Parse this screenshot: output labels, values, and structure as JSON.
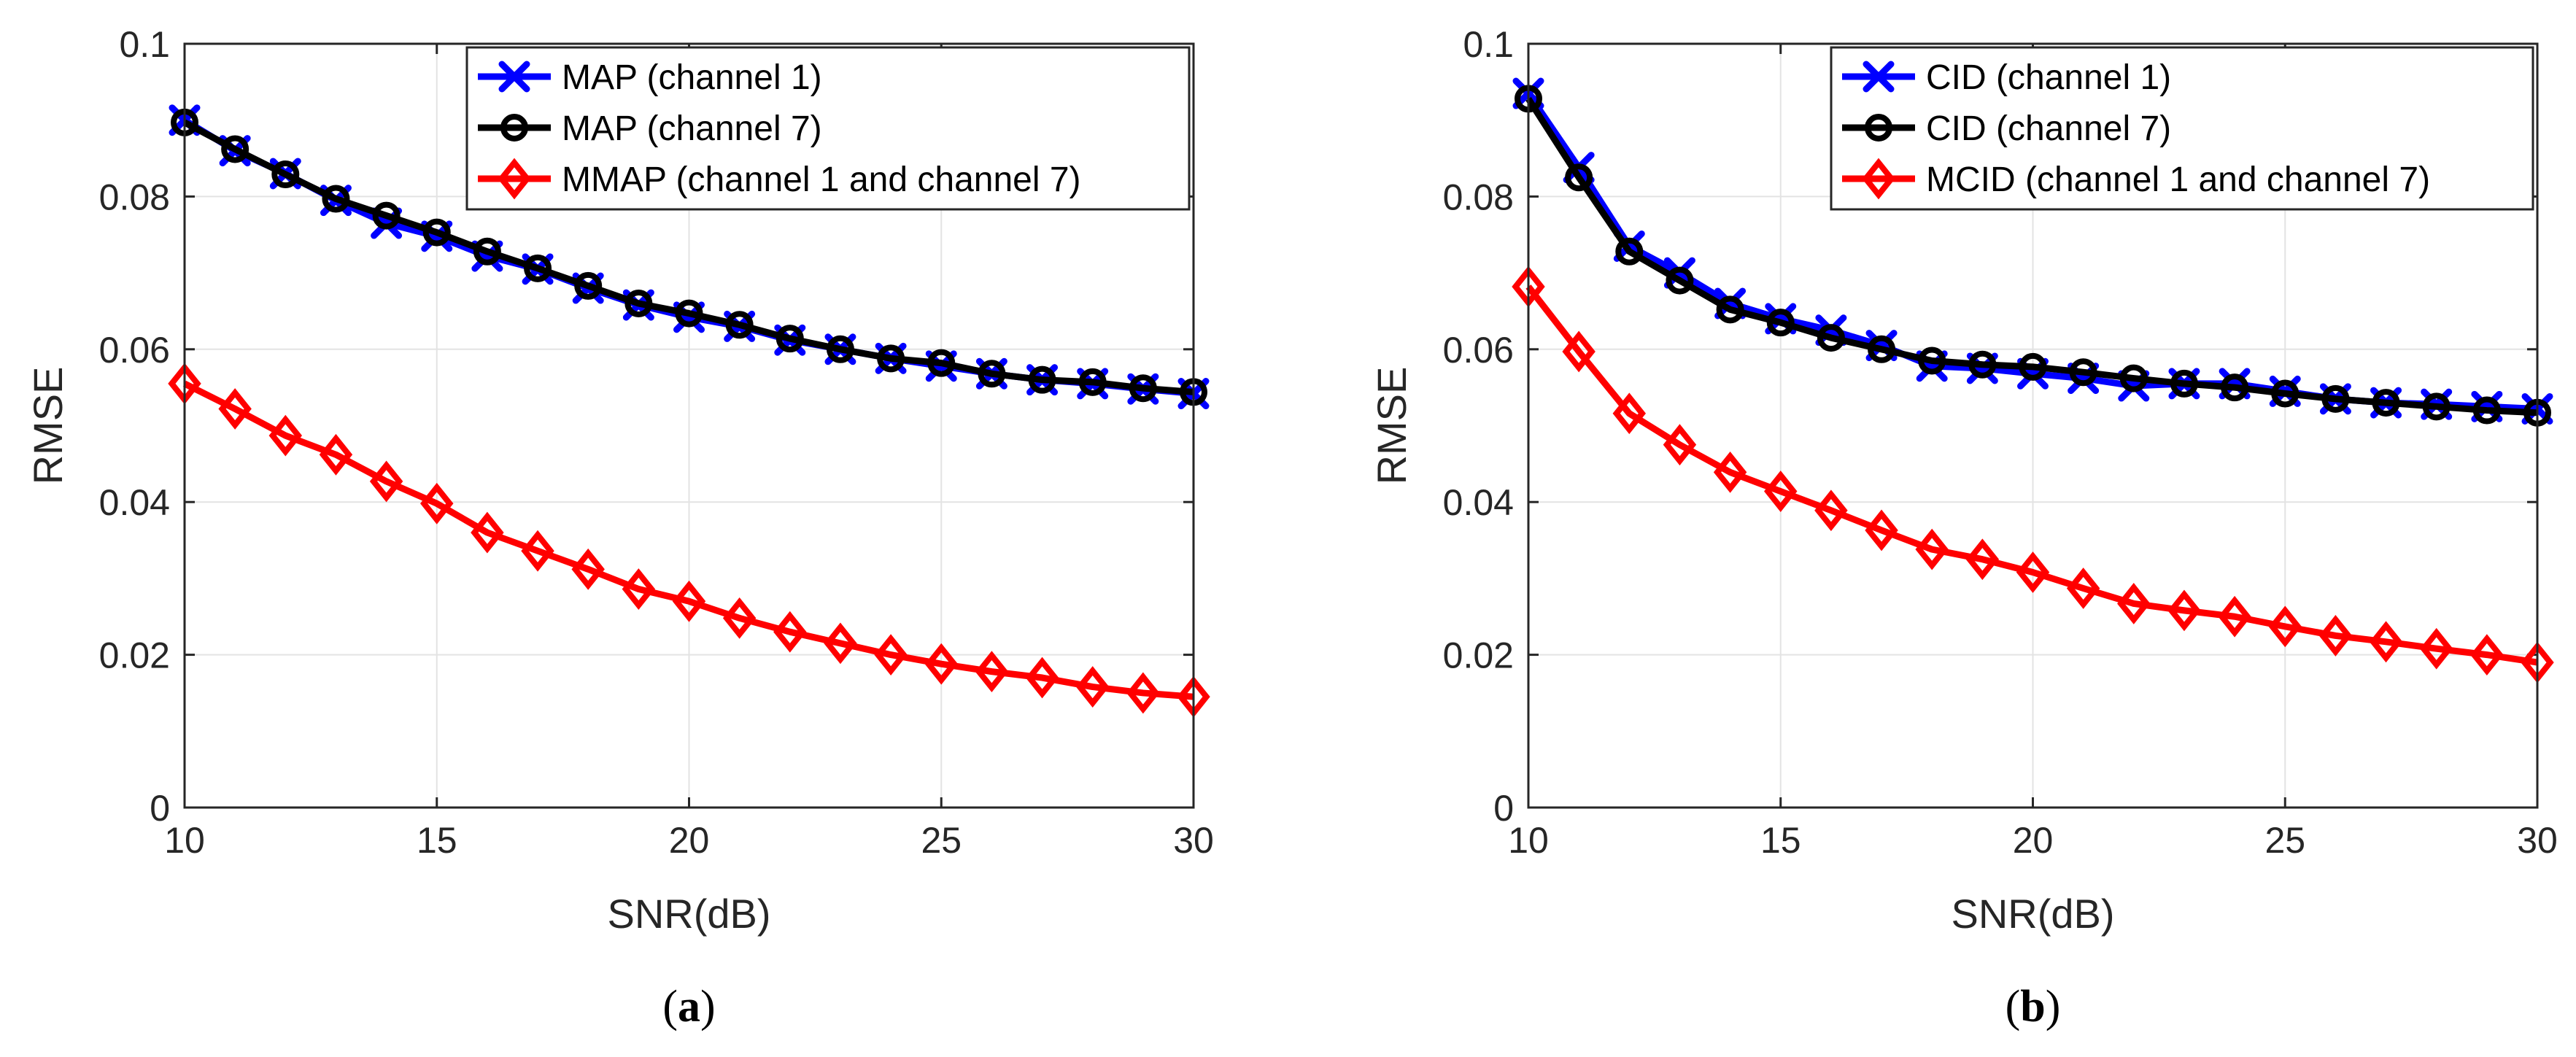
{
  "charts": [
    {
      "caption_letter": "a",
      "chart_data": {
        "type": "line",
        "xlabel": "SNR(dB)",
        "ylabel": "RMSE",
        "xlim": [
          10,
          30
        ],
        "ylim": [
          0,
          0.1
        ],
        "xticks": [
          10,
          15,
          20,
          25,
          30
        ],
        "xtick_labels": [
          "10",
          "15",
          "20",
          "25",
          "30"
        ],
        "yticks": [
          0,
          0.02,
          0.04,
          0.06,
          0.08,
          0.1
        ],
        "ytick_labels": [
          "0",
          "0.02",
          "0.04",
          "0.06",
          "0.08",
          "0.1"
        ],
        "grid": true,
        "legend_position": "top-right",
        "x": [
          10,
          11,
          12,
          13,
          14,
          15,
          16,
          17,
          18,
          19,
          20,
          21,
          22,
          23,
          24,
          25,
          26,
          27,
          28,
          29,
          30
        ],
        "series": [
          {
            "name": "MAP (channel 1)",
            "color": "#0000ff",
            "marker": "x",
            "values": [
              0.09,
              0.086,
              0.083,
              0.0795,
              0.0765,
              0.0748,
              0.0722,
              0.0705,
              0.068,
              0.0658,
              0.0642,
              0.063,
              0.0612,
              0.06,
              0.0588,
              0.0578,
              0.0568,
              0.056,
              0.0555,
              0.0548,
              0.0542
            ]
          },
          {
            "name": "MAP (channel 7)",
            "color": "#000000",
            "marker": "circle",
            "values": [
              0.0897,
              0.0862,
              0.0829,
              0.0797,
              0.0775,
              0.0753,
              0.0728,
              0.0706,
              0.0683,
              0.066,
              0.0647,
              0.0632,
              0.0614,
              0.06,
              0.0588,
              0.0582,
              0.0568,
              0.056,
              0.0557,
              0.0549,
              0.0544
            ]
          },
          {
            "name": "MMAP (channel 1 and channel 7)",
            "color": "#ff0000",
            "marker": "diamond",
            "values": [
              0.0555,
              0.0522,
              0.0487,
              0.0462,
              0.0427,
              0.0398,
              0.036,
              0.0336,
              0.0312,
              0.0286,
              0.027,
              0.0248,
              0.023,
              0.0215,
              0.02,
              0.0188,
              0.0178,
              0.017,
              0.0158,
              0.015,
              0.0145
            ]
          }
        ]
      }
    },
    {
      "caption_letter": "b",
      "chart_data": {
        "type": "line",
        "xlabel": "SNR(dB)",
        "ylabel": "RMSE",
        "xlim": [
          10,
          30
        ],
        "ylim": [
          0,
          0.1
        ],
        "xticks": [
          10,
          15,
          20,
          25,
          30
        ],
        "xtick_labels": [
          "10",
          "15",
          "20",
          "25",
          "30"
        ],
        "yticks": [
          0,
          0.02,
          0.04,
          0.06,
          0.08,
          0.1
        ],
        "ytick_labels": [
          "0",
          "0.02",
          "0.04",
          "0.06",
          "0.08",
          "0.1"
        ],
        "grid": true,
        "legend_position": "top-right",
        "x": [
          10,
          11,
          12,
          13,
          14,
          15,
          16,
          17,
          18,
          19,
          20,
          21,
          22,
          23,
          24,
          25,
          26,
          27,
          28,
          29,
          30
        ],
        "series": [
          {
            "name": "CID (channel 1)",
            "color": "#0000ff",
            "marker": "x",
            "values": [
              0.0935,
              0.0838,
              0.0735,
              0.07,
              0.066,
              0.064,
              0.0625,
              0.0605,
              0.0578,
              0.0575,
              0.0568,
              0.0562,
              0.0552,
              0.0555,
              0.0555,
              0.0545,
              0.0535,
              0.053,
              0.0528,
              0.0525,
              0.0522
            ]
          },
          {
            "name": "CID (channel 7)",
            "color": "#000000",
            "marker": "circle",
            "values": [
              0.0928,
              0.0825,
              0.0728,
              0.069,
              0.0652,
              0.0635,
              0.0615,
              0.06,
              0.0585,
              0.058,
              0.0577,
              0.057,
              0.0562,
              0.0555,
              0.055,
              0.0542,
              0.0535,
              0.053,
              0.0525,
              0.052,
              0.0517
            ]
          },
          {
            "name": "MCID (channel 1 and channel 7)",
            "color": "#ff0000",
            "marker": "diamond",
            "values": [
              0.0682,
              0.0597,
              0.0516,
              0.0475,
              0.0439,
              0.0414,
              0.0389,
              0.0363,
              0.0338,
              0.0325,
              0.0308,
              0.0287,
              0.0267,
              0.0258,
              0.025,
              0.0237,
              0.0225,
              0.0217,
              0.0208,
              0.02,
              0.019
            ]
          }
        ]
      }
    }
  ]
}
